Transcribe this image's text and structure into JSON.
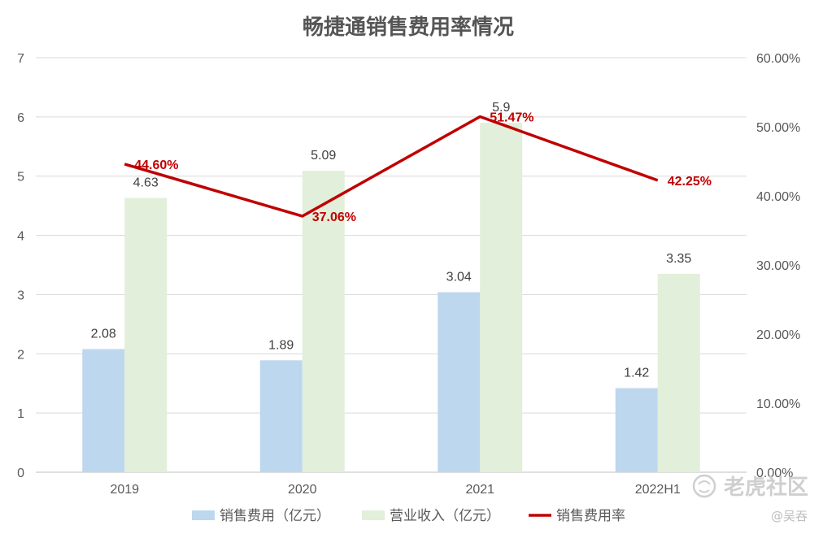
{
  "chart_data": {
    "type": "bar",
    "title": "畅捷通销售费用率情况",
    "categories": [
      "2019",
      "2020",
      "2021",
      "2022H1"
    ],
    "series": [
      {
        "name": "销售费用（亿元）",
        "kind": "bar",
        "axis": "left",
        "color": "#bdd7ee",
        "values": [
          2.08,
          1.89,
          3.04,
          1.42
        ],
        "labels": [
          "2.08",
          "1.89",
          "3.04",
          "1.42"
        ]
      },
      {
        "name": "营业收入（亿元）",
        "kind": "bar",
        "axis": "left",
        "color": "#e2efda",
        "values": [
          4.63,
          5.09,
          5.9,
          3.35
        ],
        "labels": [
          "4.63",
          "5.09",
          "5.9",
          "3.35"
        ]
      },
      {
        "name": "销售费用率",
        "kind": "line",
        "axis": "right",
        "color": "#c00000",
        "values": [
          44.6,
          37.06,
          51.47,
          42.25
        ],
        "labels": [
          "44.60%",
          "37.06%",
          "51.47%",
          "42.25%"
        ]
      }
    ],
    "y_left": {
      "min": 0,
      "max": 7,
      "ticks": [
        "0",
        "1",
        "2",
        "3",
        "4",
        "5",
        "6",
        "7"
      ]
    },
    "y_right": {
      "min": 0,
      "max": 60,
      "ticks": [
        "0.00%",
        "10.00%",
        "20.00%",
        "30.00%",
        "40.00%",
        "50.00%",
        "60.00%"
      ]
    },
    "grid": true,
    "legend_position": "bottom"
  },
  "watermark": {
    "brand": "老虎社区",
    "author": "@吴吞"
  }
}
